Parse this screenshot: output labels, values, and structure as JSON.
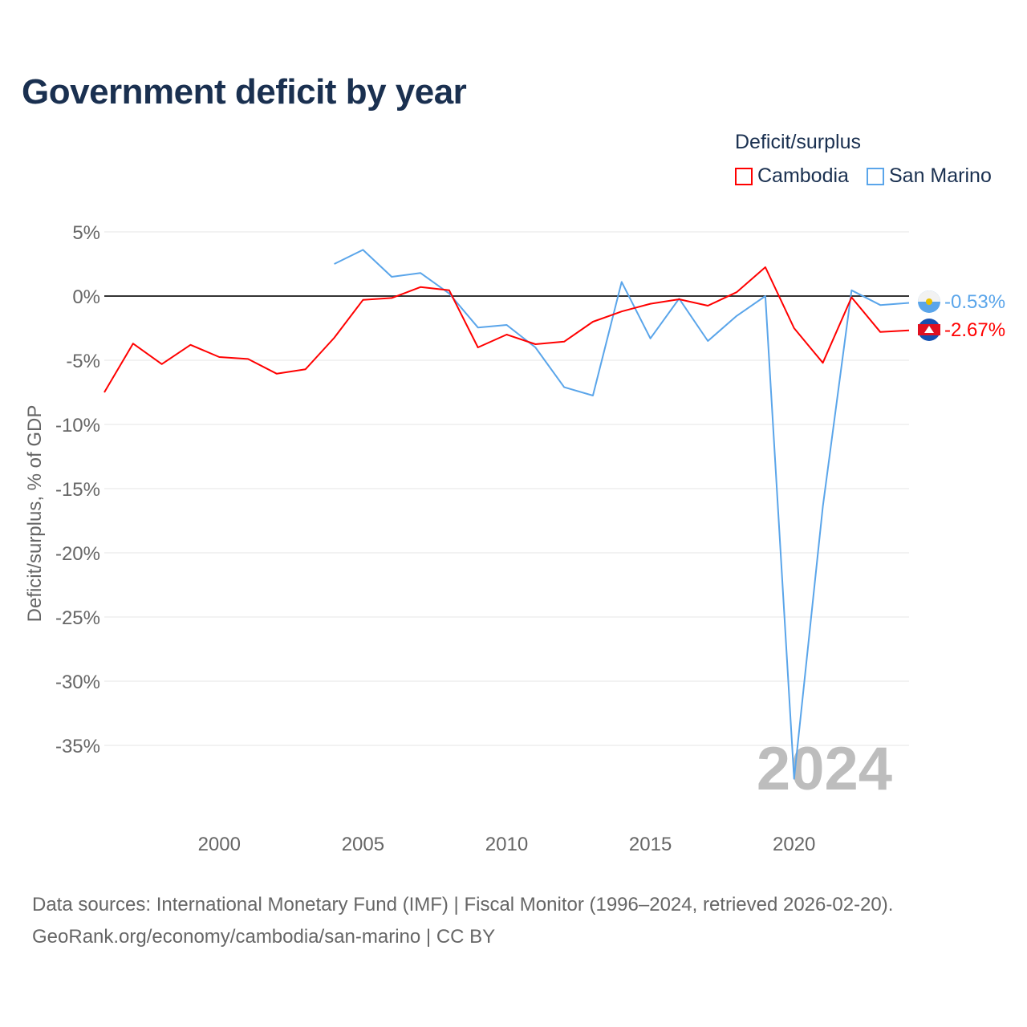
{
  "title": "Government deficit by year",
  "legend": {
    "title": "Deficit/surplus",
    "items": [
      "Cambodia",
      "San Marino"
    ]
  },
  "footer": {
    "line1": "Data sources: International Monetary Fund (IMF) | Fiscal Monitor (1996–2024, retrieved 2026-02-20).",
    "line2": "GeoRank.org/economy/cambodia/san-marino | CC BY"
  },
  "chart_data": {
    "type": "line",
    "title": "Government deficit by year",
    "xlabel": "",
    "ylabel": "Deficit/surplus, % of GDP",
    "xlim": [
      1996,
      2024
    ],
    "ylim": [
      -40,
      5
    ],
    "y_ticks": [
      5,
      0,
      -5,
      -10,
      -15,
      -20,
      -25,
      -30,
      -35
    ],
    "y_tick_labels": [
      "5%",
      "0%",
      "-5%",
      "-10%",
      "-15%",
      "-20%",
      "-25%",
      "-30%",
      "-35%"
    ],
    "x_ticks": [
      2000,
      2005,
      2010,
      2015,
      2020
    ],
    "x_tick_labels": [
      "2000",
      "2005",
      "2010",
      "2015",
      "2020"
    ],
    "year_watermark": "2024",
    "grid": true,
    "legend_position": "top-right",
    "series": [
      {
        "name": "Cambodia",
        "color": "#ff0000",
        "end_label": "-2.67%",
        "x": [
          1996,
          1997,
          1998,
          1999,
          2000,
          2001,
          2002,
          2003,
          2004,
          2005,
          2006,
          2007,
          2008,
          2009,
          2010,
          2011,
          2012,
          2013,
          2014,
          2015,
          2016,
          2017,
          2018,
          2019,
          2020,
          2021,
          2022,
          2023,
          2024
        ],
        "y": [
          -7.5,
          -3.7,
          -5.3,
          -3.8,
          -4.75,
          -4.9,
          -6.05,
          -5.7,
          -3.25,
          -0.3,
          -0.15,
          0.7,
          0.45,
          -4.0,
          -3.0,
          -3.75,
          -3.55,
          -2.0,
          -1.2,
          -0.6,
          -0.25,
          -0.75,
          0.3,
          2.25,
          -2.5,
          -5.2,
          -0.1,
          -2.8,
          -2.67
        ]
      },
      {
        "name": "San Marino",
        "color": "#5aa5ea",
        "end_label": "-0.53%",
        "x": [
          2004,
          2005,
          2006,
          2007,
          2008,
          2009,
          2010,
          2011,
          2012,
          2013,
          2014,
          2015,
          2016,
          2017,
          2018,
          2019,
          2020,
          2021,
          2022,
          2023,
          2024
        ],
        "y": [
          2.5,
          3.6,
          1.5,
          1.8,
          0.2,
          -2.45,
          -2.25,
          -4.0,
          -7.1,
          -7.75,
          1.1,
          -3.3,
          -0.2,
          -3.5,
          -1.55,
          0.0,
          -37.6,
          -16.4,
          0.45,
          -0.7,
          -0.53
        ]
      }
    ]
  }
}
